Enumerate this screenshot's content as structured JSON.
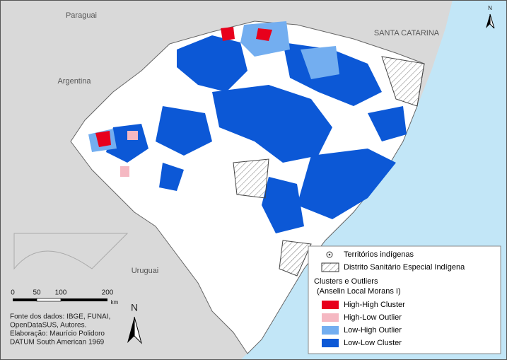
{
  "map_labels": [
    "Paraguai",
    "SANTA CATARINA",
    "Argentina",
    "Uruguai"
  ],
  "legend": {
    "indigenous_territories": "Territórios indígenas",
    "health_district": "Distrito Sanitário Especial Indígena",
    "title": "Clusters e Outliers",
    "subtitle": "(Anselin Local Morans I)",
    "items": [
      {
        "label": "High-High Cluster",
        "color": "#e8001c"
      },
      {
        "label": "High-Low Outlier",
        "color": "#f5b8c2"
      },
      {
        "label": "Low-High Outlier",
        "color": "#73aef0"
      },
      {
        "label": "Low-Low Cluster",
        "color": "#0c58d6"
      }
    ]
  },
  "scale_bar": {
    "ticks": [
      "0",
      "50",
      "100",
      "200"
    ],
    "unit": "km"
  },
  "north": "N",
  "credits": [
    "Fonte dos dados: IBGE, FUNAI,",
    "OpenDataSUS, Autores.",
    "Elaboração: Maurício Polidoro",
    "DATUM South American 1969"
  ]
}
